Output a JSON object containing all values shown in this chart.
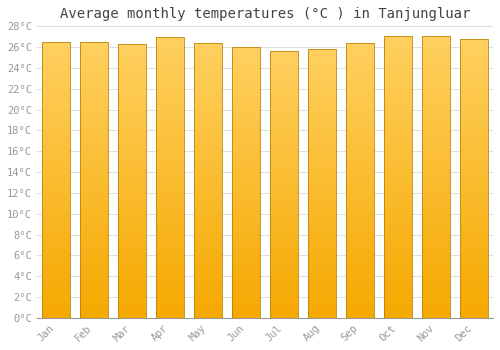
{
  "title": "Average monthly temperatures (°C ) in Tanjungluar",
  "months": [
    "Jan",
    "Feb",
    "Mar",
    "Apr",
    "May",
    "Jun",
    "Jul",
    "Aug",
    "Sep",
    "Oct",
    "Nov",
    "Dec"
  ],
  "temperatures": [
    26.5,
    26.5,
    26.3,
    27.0,
    26.4,
    26.0,
    25.6,
    25.8,
    26.4,
    27.1,
    27.1,
    26.8
  ],
  "bar_color_bottom": "#F5A800",
  "bar_color_top": "#FFD060",
  "bar_edge_color": "#B8860B",
  "ylim": [
    0,
    28
  ],
  "yticks": [
    0,
    2,
    4,
    6,
    8,
    10,
    12,
    14,
    16,
    18,
    20,
    22,
    24,
    26,
    28
  ],
  "background_color": "#FFFFFF",
  "plot_bg_color": "#FFFFFF",
  "grid_color": "#DDDDDD",
  "title_fontsize": 10,
  "tick_fontsize": 7.5,
  "tick_color": "#999999",
  "font_family": "monospace",
  "bar_width": 0.75
}
